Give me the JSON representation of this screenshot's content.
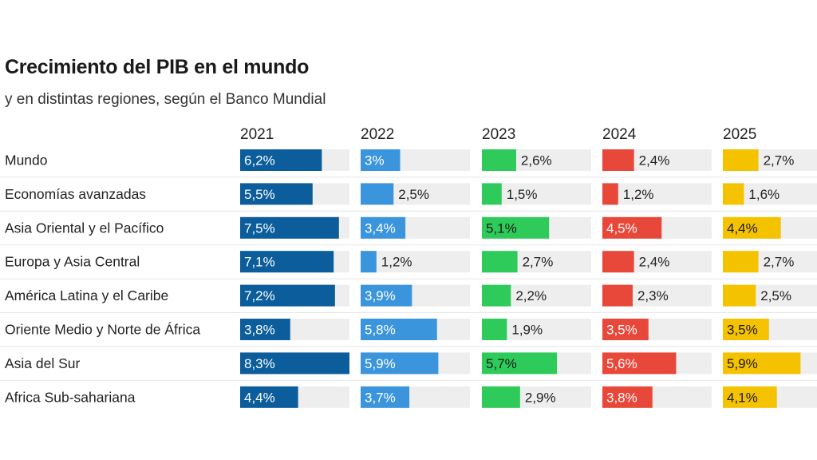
{
  "chart_data": {
    "type": "bar",
    "title": "Crecimiento del PIB en el mundo",
    "subtitle": "y en distintas regiones, según el Banco Mundial",
    "categories": [
      "Mundo",
      "Economías avanzadas",
      "Asia Oriental y el Pacífico",
      "Europa y Asia Central",
      "América Latina y el Caribe",
      "Oriente Medio y Norte de África",
      "Asia del Sur",
      "Africa Sub-sahariana"
    ],
    "series": [
      {
        "name": "2021",
        "color": "#0b5d9c",
        "values": [
          6.2,
          5.5,
          7.5,
          7.1,
          7.2,
          3.8,
          8.3,
          4.4
        ],
        "labels": [
          "6,2%",
          "5,5%",
          "7,5%",
          "7,1%",
          "7,2%",
          "3,8%",
          "8,3%",
          "4,4%"
        ]
      },
      {
        "name": "2022",
        "color": "#3b95dd",
        "values": [
          3.0,
          2.5,
          3.4,
          1.2,
          3.9,
          5.8,
          5.9,
          3.7
        ],
        "labels": [
          "3%",
          "2,5%",
          "3,4%",
          "1,2%",
          "3,9%",
          "5,8%",
          "5,9%",
          "3,7%"
        ]
      },
      {
        "name": "2023",
        "color": "#2ecb5b",
        "values": [
          2.6,
          1.5,
          5.1,
          2.7,
          2.2,
          1.9,
          5.7,
          2.9
        ],
        "labels": [
          "2,6%",
          "1,5%",
          "5,1%",
          "2,7%",
          "2,2%",
          "1,9%",
          "5,7%",
          "2,9%"
        ]
      },
      {
        "name": "2024",
        "color": "#e8483a",
        "values": [
          2.4,
          1.2,
          4.5,
          2.4,
          2.3,
          3.5,
          5.6,
          3.8
        ],
        "labels": [
          "2,4%",
          "1,2%",
          "4,5%",
          "2,4%",
          "2,3%",
          "3,5%",
          "5,6%",
          "3,8%"
        ]
      },
      {
        "name": "2025",
        "color": "#f5c200",
        "values": [
          2.7,
          1.6,
          4.4,
          2.7,
          2.5,
          3.5,
          5.9,
          4.1
        ],
        "labels": [
          "2,7%",
          "1,6%",
          "4,4%",
          "2,7%",
          "2,5%",
          "3,5%",
          "5,9%",
          "4,1%"
        ]
      }
    ],
    "value_max": 8.3,
    "track_color": "#eeeeee",
    "grid": false,
    "legend": "none"
  }
}
